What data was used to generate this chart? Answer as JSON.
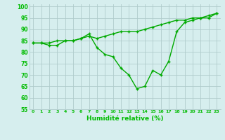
{
  "x": [
    0,
    1,
    2,
    3,
    4,
    5,
    6,
    7,
    8,
    9,
    10,
    11,
    12,
    13,
    14,
    15,
    16,
    17,
    18,
    19,
    20,
    21,
    22,
    23
  ],
  "line1": [
    84,
    84,
    84,
    85,
    85,
    85,
    86,
    87,
    86,
    87,
    88,
    89,
    89,
    89,
    90,
    91,
    92,
    93,
    94,
    94,
    95,
    95,
    96,
    97
  ],
  "line2": [
    84,
    84,
    83,
    83,
    85,
    85,
    86,
    88,
    82,
    79,
    78,
    73,
    70,
    64,
    65,
    72,
    70,
    76,
    89,
    93,
    94,
    95,
    95,
    97
  ],
  "bg_color": "#d6eeee",
  "grid_color": "#b0cccc",
  "line_color": "#00aa00",
  "xlabel": "Humidité relative (%)",
  "xlim": [
    -0.5,
    23.5
  ],
  "ylim": [
    55,
    101
  ],
  "yticks": [
    55,
    60,
    65,
    70,
    75,
    80,
    85,
    90,
    95,
    100
  ],
  "xticks": [
    0,
    1,
    2,
    3,
    4,
    5,
    6,
    7,
    8,
    9,
    10,
    11,
    12,
    13,
    14,
    15,
    16,
    17,
    18,
    19,
    20,
    21,
    22,
    23
  ],
  "font_color": "#00bb00",
  "markersize": 2.5,
  "linewidth": 1.0
}
